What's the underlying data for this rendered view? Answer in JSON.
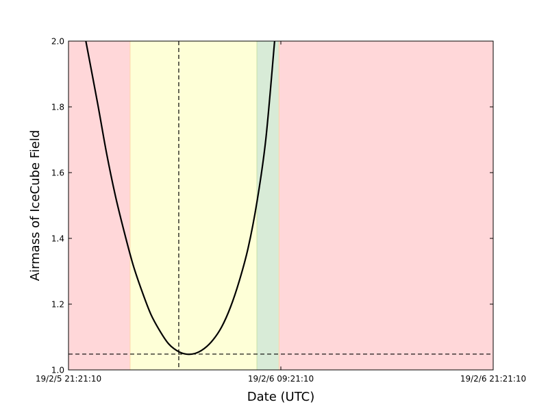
{
  "chart_data": {
    "type": "line",
    "title": "",
    "xlabel": "Date (UTC)",
    "ylabel": "Airmass of IceCube Field",
    "x_ticks": [
      "19/2/5 21:21:10",
      "19/2/6 09:21:10",
      "19/2/6 21:21:10"
    ],
    "y_ticks": [
      "1.0",
      "1.2",
      "1.4",
      "1.6",
      "1.8",
      "2.0"
    ],
    "xlim": [
      "19/2/5 21:21:10",
      "19/2/6 21:21:10"
    ],
    "ylim": [
      1.0,
      2.0
    ],
    "grid": false,
    "series": [
      {
        "style": "solid",
        "color": "#000000",
        "x": [
          "19/2/5 22:20",
          "19/2/5 23:00",
          "19/2/5 23:30",
          "19/2/6 00:00",
          "19/2/6 00:30",
          "19/2/6 01:00",
          "19/2/6 01:30",
          "19/2/6 02:00",
          "19/2/6 02:30",
          "19/2/6 03:00",
          "19/2/6 03:30",
          "19/2/6 04:00",
          "19/2/6 04:30",
          "19/2/6 05:00",
          "19/2/6 05:30",
          "19/2/6 06:00",
          "19/2/6 06:30",
          "19/2/6 07:00",
          "19/2/6 07:30",
          "19/2/6 08:00",
          "19/2/6 08:30",
          "19/2/6 09:00"
        ],
        "y": [
          2.0,
          1.81,
          1.66,
          1.53,
          1.42,
          1.32,
          1.24,
          1.17,
          1.12,
          1.08,
          1.058,
          1.048,
          1.05,
          1.064,
          1.09,
          1.13,
          1.19,
          1.27,
          1.37,
          1.51,
          1.7,
          2.0
        ]
      }
    ],
    "reference_lines": [
      {
        "orientation": "vertical",
        "x": "19/2/6 03:35",
        "style": "dashed",
        "color": "#000000"
      },
      {
        "orientation": "horizontal",
        "y": 1.048,
        "style": "dashed",
        "color": "#000000"
      }
    ],
    "shaded_regions": [
      {
        "x_start": "19/2/5 21:21:10",
        "x_end": "19/2/6 00:50",
        "color": "#ffd7d9"
      },
      {
        "x_start": "19/2/6 00:50",
        "x_end": "19/2/6 08:00",
        "color": "#feffd7"
      },
      {
        "x_start": "19/2/6 08:00",
        "x_end": "19/2/6 09:15",
        "color": "#d8ebd7"
      },
      {
        "x_start": "19/2/6 09:15",
        "x_end": "19/2/6 21:21:10",
        "color": "#ffd7d9"
      }
    ]
  }
}
